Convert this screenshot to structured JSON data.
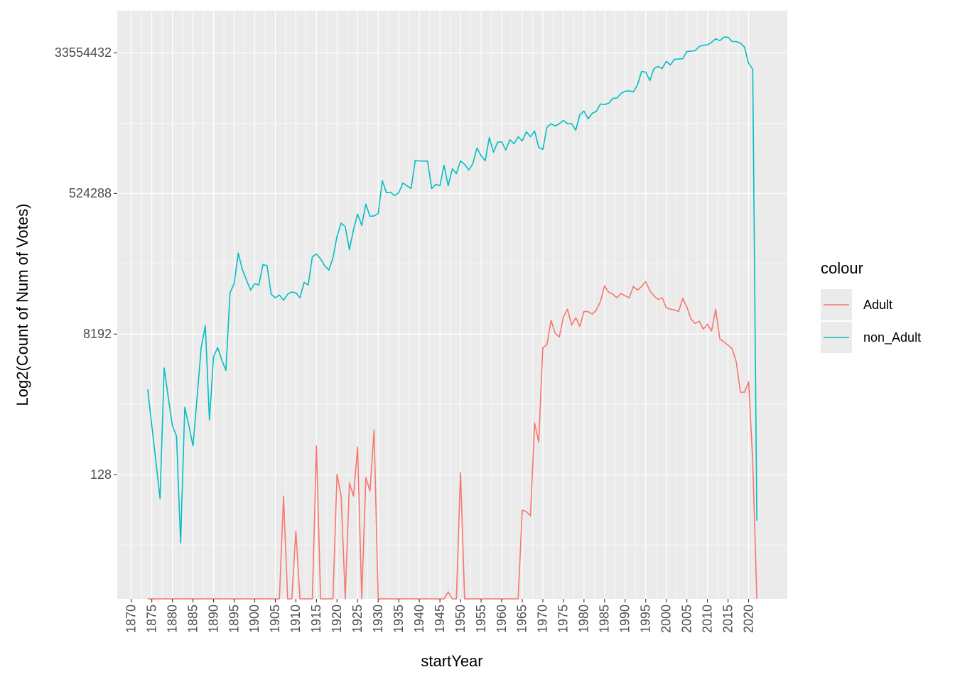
{
  "chart_data": {
    "type": "line",
    "x_label": "startYear",
    "y_label": "Log2(Count of Num of Votes)",
    "legend_title": "colour",
    "legend_position": "right",
    "grid": true,
    "yscale": "log2",
    "xlim": [
      1866.6,
      2029.4
    ],
    "ylim": [
      3.25,
      117000000
    ],
    "xticks": [
      1870,
      1875,
      1880,
      1885,
      1890,
      1895,
      1900,
      1905,
      1910,
      1915,
      1920,
      1925,
      1930,
      1935,
      1940,
      1945,
      1950,
      1955,
      1960,
      1965,
      1970,
      1975,
      1980,
      1985,
      1990,
      1995,
      2000,
      2005,
      2010,
      2015,
      2020
    ],
    "yticks": [
      128,
      8192,
      524288,
      33554432
    ],
    "x": [
      1874,
      1875,
      1876,
      1877,
      1878,
      1879,
      1880,
      1881,
      1882,
      1883,
      1884,
      1885,
      1886,
      1887,
      1888,
      1889,
      1890,
      1891,
      1892,
      1893,
      1894,
      1895,
      1896,
      1897,
      1898,
      1899,
      1900,
      1901,
      1902,
      1903,
      1904,
      1905,
      1906,
      1907,
      1908,
      1909,
      1910,
      1911,
      1912,
      1913,
      1914,
      1915,
      1916,
      1917,
      1918,
      1919,
      1920,
      1921,
      1922,
      1923,
      1924,
      1925,
      1926,
      1927,
      1928,
      1929,
      1930,
      1931,
      1932,
      1933,
      1934,
      1935,
      1936,
      1937,
      1938,
      1939,
      1940,
      1941,
      1942,
      1943,
      1944,
      1945,
      1946,
      1947,
      1948,
      1949,
      1950,
      1951,
      1952,
      1953,
      1954,
      1955,
      1956,
      1957,
      1958,
      1959,
      1960,
      1961,
      1962,
      1963,
      1964,
      1965,
      1966,
      1967,
      1968,
      1969,
      1970,
      1971,
      1972,
      1973,
      1974,
      1975,
      1976,
      1977,
      1978,
      1979,
      1980,
      1981,
      1982,
      1983,
      1984,
      1985,
      1986,
      1987,
      1988,
      1989,
      1990,
      1991,
      1992,
      1993,
      1994,
      1995,
      1996,
      1997,
      1998,
      1999,
      2000,
      2001,
      2002,
      2003,
      2004,
      2005,
      2006,
      2007,
      2008,
      2009,
      2010,
      2011,
      2012,
      2013,
      2014,
      2015,
      2016,
      2017,
      2018,
      2019,
      2020,
      2021,
      2022
    ],
    "series": [
      {
        "name": "Adult",
        "color": "#F8766D",
        "values": [
          0,
          0,
          0,
          0,
          0,
          0,
          0,
          0,
          0,
          0,
          0,
          0,
          0,
          0,
          0,
          0,
          0,
          0,
          0,
          0,
          0,
          0,
          0,
          0,
          0,
          0,
          0,
          0,
          0,
          0,
          0,
          0,
          0,
          68,
          0,
          0,
          24,
          0,
          0,
          0,
          0,
          300,
          0,
          0,
          0,
          0,
          130,
          68,
          0,
          100,
          68,
          290,
          0,
          118,
          79,
          480,
          0,
          0,
          0,
          0,
          0,
          0,
          0,
          0,
          0,
          0,
          0,
          0,
          0,
          0,
          0,
          0,
          0,
          4,
          0,
          0,
          136,
          0,
          0,
          0,
          0,
          0,
          0,
          0,
          0,
          0,
          0,
          0,
          0,
          0,
          0,
          45,
          43,
          38,
          590,
          336,
          5500,
          6000,
          12300,
          8400,
          7500,
          13600,
          17100,
          10700,
          13300,
          10300,
          16000,
          15900,
          14800,
          16700,
          21500,
          34100,
          28300,
          26600,
          24000,
          27200,
          25400,
          24000,
          33500,
          30100,
          33500,
          38700,
          29500,
          25400,
          22800,
          24000,
          17800,
          17100,
          16700,
          16000,
          23500,
          18200,
          12800,
          11200,
          12000,
          9500,
          11000,
          9000,
          17100,
          7100,
          6500,
          5900,
          5300,
          3600,
          1470,
          1470,
          2000,
          191,
          0
        ]
      },
      {
        "name": "non_Adult",
        "color": "#00BFC4",
        "values": [
          1600,
          545,
          187,
          63,
          3000,
          1260,
          545,
          400,
          17,
          940,
          545,
          300,
          1260,
          5500,
          10500,
          645,
          4200,
          5500,
          3800,
          2800,
          27800,
          36400,
          89500,
          55400,
          40400,
          30100,
          36400,
          35000,
          64200,
          62000,
          26600,
          24000,
          26000,
          22400,
          26600,
          28500,
          27800,
          24000,
          37900,
          35000,
          80700,
          87600,
          75800,
          62000,
          54300,
          77400,
          148000,
          218000,
          196000,
          99300,
          179000,
          285000,
          204000,
          383000,
          267000,
          270000,
          290000,
          767000,
          536000,
          544000,
          492000,
          536000,
          716000,
          658000,
          606000,
          1400000,
          1370000,
          1370000,
          1370000,
          606000,
          687000,
          660000,
          1210000,
          658000,
          1090000,
          945000,
          1370000,
          1240000,
          1050000,
          1270000,
          2010000,
          1600000,
          1380000,
          2750000,
          1780000,
          2380000,
          2420000,
          1890000,
          2580000,
          2280000,
          2810000,
          2480000,
          3250000,
          2810000,
          3330000,
          2050000,
          1930000,
          3710000,
          4120000,
          3870000,
          4120000,
          4570000,
          4120000,
          4150000,
          3400000,
          5400000,
          6000000,
          4760000,
          5620000,
          5950000,
          7400000,
          7300000,
          7550000,
          8730000,
          8830000,
          10100000,
          10800000,
          10900000,
          10600000,
          13000000,
          19400000,
          19000000,
          14800000,
          21100000,
          22500000,
          21100000,
          26100000,
          23500000,
          27800000,
          28000000,
          28300000,
          35000000,
          35300000,
          35800000,
          40500000,
          42200000,
          42500000,
          45900000,
          50900000,
          48100000,
          53400000,
          53400000,
          46900000,
          46900000,
          44900000,
          39700000,
          24600000,
          20700000,
          33
        ]
      }
    ]
  }
}
